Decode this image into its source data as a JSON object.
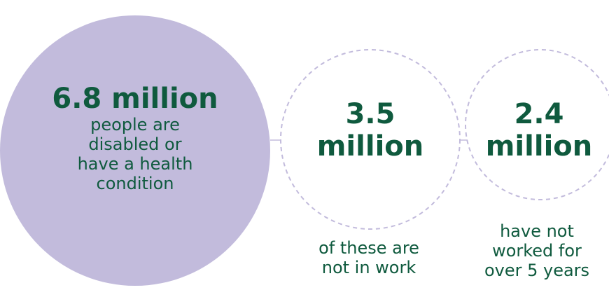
{
  "stats": [
    {
      "value": "6.8 million",
      "caption_lines": [
        "people are",
        "disabled or",
        "have a health",
        "condition"
      ]
    },
    {
      "value_lines": [
        "3.5",
        "million"
      ],
      "caption_lines": [
        "of these are",
        "not in work"
      ]
    },
    {
      "value_lines": [
        "2.4",
        "million"
      ],
      "caption_lines": [
        "have not",
        "worked for",
        "over 5 years"
      ]
    }
  ],
  "colors": {
    "text": "#0f5a3e",
    "main_circle_fill": "#c2bbdc",
    "dashed_outline": "#c2bbdc"
  }
}
